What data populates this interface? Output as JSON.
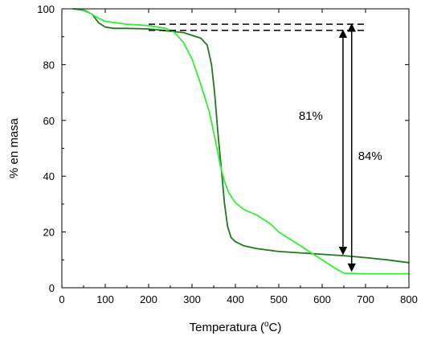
{
  "chart_data": {
    "type": "line",
    "title": "",
    "xlabel_text": "Temperatura (",
    "xlabel_sup": "o",
    "xlabel_tail": "C)",
    "ylabel": "% en masa",
    "xlim": [
      0,
      800
    ],
    "ylim": [
      0,
      100
    ],
    "xticks": [
      0,
      100,
      200,
      300,
      400,
      500,
      600,
      700,
      800
    ],
    "yticks": [
      0,
      20,
      40,
      60,
      80,
      100
    ],
    "grid": false,
    "legend": "none",
    "series": [
      {
        "color": "#1f7a1f",
        "x": [
          25,
          50,
          70,
          85,
          100,
          120,
          150,
          200,
          250,
          280,
          300,
          320,
          335,
          345,
          352,
          360,
          368,
          375,
          382,
          390,
          400,
          420,
          450,
          500,
          550,
          600,
          650,
          700,
          750,
          800
        ],
        "y": [
          100,
          99.5,
          98,
          95,
          93.5,
          93,
          93,
          92.8,
          92,
          91.5,
          90.5,
          89.5,
          87,
          80,
          70,
          55,
          42,
          30,
          22,
          18,
          16.5,
          15,
          14,
          13,
          12.5,
          12,
          11.5,
          10.8,
          10,
          9
        ]
      },
      {
        "color": "#33ee33",
        "x": [
          25,
          50,
          80,
          100,
          150,
          200,
          240,
          260,
          280,
          300,
          320,
          340,
          355,
          365,
          375,
          385,
          400,
          420,
          450,
          480,
          500,
          550,
          600,
          630,
          650,
          700,
          750,
          800
        ],
        "y": [
          100,
          99.8,
          97,
          95.5,
          94.5,
          94,
          93,
          91.5,
          88,
          82,
          73,
          63,
          52,
          44,
          38,
          34,
          30.5,
          28,
          26,
          23,
          20,
          15,
          10,
          7,
          5.2,
          5,
          5,
          5
        ]
      }
    ],
    "reference_lines": [
      {
        "x0": 200,
        "x1": 700,
        "y": 94.5,
        "style": "dashed"
      },
      {
        "x0": 200,
        "x1": 700,
        "y": 92.3,
        "style": "dashed"
      }
    ],
    "arrows": [
      {
        "x": 648,
        "y0": 92.3,
        "y1": 12,
        "label": "81%"
      },
      {
        "x": 668,
        "y0": 94.5,
        "y1": 6,
        "label": "84%"
      }
    ]
  }
}
